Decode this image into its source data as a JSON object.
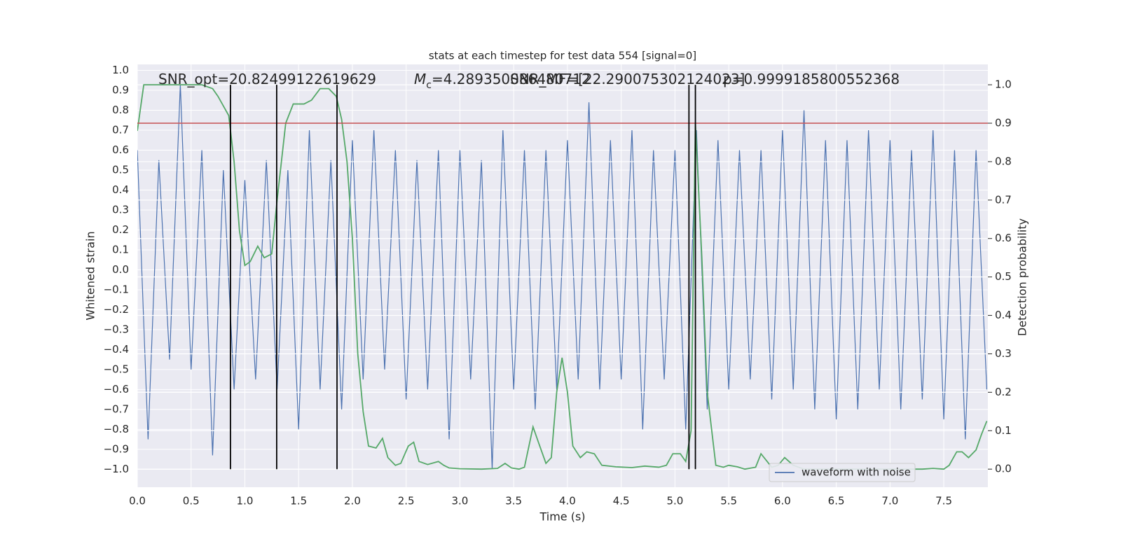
{
  "chart_data": {
    "type": "line",
    "title": "stats at each timestep for test data 554 [signal=0]",
    "x_label": "Time (s)",
    "y_label": "Whitened strain",
    "y2_label": "Detection probability",
    "grid": true,
    "legend_position": "lower right",
    "xlim": [
      0,
      7.91
    ],
    "ylim": [
      -1.09,
      1.03
    ],
    "y2lim": [
      -0.047,
      1.053
    ],
    "xticks": [
      {
        "value": 0,
        "label": "0.0"
      },
      {
        "value": 0.5,
        "label": "0.5"
      },
      {
        "value": 1,
        "label": "1.0"
      },
      {
        "value": 1.5,
        "label": "1.5"
      },
      {
        "value": 2,
        "label": "2.0"
      },
      {
        "value": 2.5,
        "label": "2.5"
      },
      {
        "value": 3,
        "label": "3.0"
      },
      {
        "value": 3.5,
        "label": "3.5"
      },
      {
        "value": 4,
        "label": "4.0"
      },
      {
        "value": 4.5,
        "label": "4.5"
      },
      {
        "value": 5,
        "label": "5.0"
      },
      {
        "value": 5.5,
        "label": "5.5"
      },
      {
        "value": 6,
        "label": "6.0"
      },
      {
        "value": 6.5,
        "label": "6.5"
      },
      {
        "value": 7,
        "label": "7.0"
      },
      {
        "value": 7.5,
        "label": "7.5"
      }
    ],
    "yticks": [
      {
        "value": -1,
        "label": "−1.0"
      },
      {
        "value": -0.9,
        "label": "−0.9"
      },
      {
        "value": -0.8,
        "label": "−0.8"
      },
      {
        "value": -0.7,
        "label": "−0.7"
      },
      {
        "value": -0.6,
        "label": "−0.6"
      },
      {
        "value": -0.5,
        "label": "−0.5"
      },
      {
        "value": -0.4,
        "label": "−0.4"
      },
      {
        "value": -0.3,
        "label": "−0.3"
      },
      {
        "value": -0.2,
        "label": "−0.2"
      },
      {
        "value": -0.1,
        "label": "−0.1"
      },
      {
        "value": 0,
        "label": "0.0"
      },
      {
        "value": 0.1,
        "label": "0.1"
      },
      {
        "value": 0.2,
        "label": "0.2"
      },
      {
        "value": 0.3,
        "label": "0.3"
      },
      {
        "value": 0.4,
        "label": "0.4"
      },
      {
        "value": 0.5,
        "label": "0.5"
      },
      {
        "value": 0.6,
        "label": "0.6"
      },
      {
        "value": 0.7,
        "label": "0.7"
      },
      {
        "value": 0.8,
        "label": "0.8"
      },
      {
        "value": 0.9,
        "label": "0.9"
      },
      {
        "value": 1,
        "label": "1.0"
      }
    ],
    "y2ticks": [
      {
        "value": 0,
        "label": "0.0"
      },
      {
        "value": 0.1,
        "label": "0.1"
      },
      {
        "value": 0.2,
        "label": "0.2"
      },
      {
        "value": 0.3,
        "label": "0.3"
      },
      {
        "value": 0.4,
        "label": "0.4"
      },
      {
        "value": 0.5,
        "label": "0.5"
      },
      {
        "value": 0.6,
        "label": "0.6"
      },
      {
        "value": 0.7,
        "label": "0.7"
      },
      {
        "value": 0.8,
        "label": "0.8"
      },
      {
        "value": 0.9,
        "label": "0.9"
      },
      {
        "value": 1,
        "label": "1.0"
      }
    ],
    "series": [
      {
        "name": "waveform with noise",
        "color": "#4c72b0",
        "x": [
          0.0,
          0.1,
          0.2,
          0.3,
          0.4,
          0.5,
          0.6,
          0.7,
          0.8,
          0.9,
          1.0,
          1.1,
          1.2,
          1.3,
          1.4,
          1.5,
          1.6,
          1.7,
          1.8,
          1.9,
          2.0,
          2.1,
          2.2,
          2.3,
          2.4,
          2.5,
          2.6,
          2.7,
          2.8,
          2.9,
          3.0,
          3.1,
          3.2,
          3.3,
          3.4,
          3.5,
          3.6,
          3.7,
          3.8,
          3.9,
          4.0,
          4.1,
          4.2,
          4.3,
          4.4,
          4.5,
          4.6,
          4.7,
          4.8,
          4.9,
          5.0,
          5.1,
          5.2,
          5.3,
          5.4,
          5.5,
          5.6,
          5.7,
          5.8,
          5.9,
          6.0,
          6.1,
          6.2,
          6.3,
          6.4,
          6.5,
          6.6,
          6.7,
          6.8,
          6.9,
          7.0,
          7.1,
          7.2,
          7.3,
          7.4,
          7.5,
          7.6,
          7.7,
          7.8,
          7.9
        ],
        "values": [
          0.6,
          -0.85,
          0.55,
          -0.45,
          0.93,
          -0.5,
          0.6,
          -0.93,
          0.5,
          -0.6,
          0.45,
          -0.55,
          0.55,
          -0.6,
          0.5,
          -0.8,
          0.7,
          -0.6,
          0.55,
          -0.7,
          0.65,
          -0.55,
          0.7,
          -0.5,
          0.6,
          -0.65,
          0.55,
          -0.6,
          0.6,
          -0.85,
          0.6,
          -0.55,
          0.55,
          -1.0,
          0.7,
          -0.6,
          0.6,
          -0.7,
          0.6,
          -0.6,
          0.65,
          -0.55,
          0.84,
          -0.6,
          0.65,
          -0.55,
          0.7,
          -0.8,
          0.6,
          -0.55,
          0.6,
          -0.8,
          0.7,
          -0.7,
          0.65,
          -0.6,
          0.6,
          -0.55,
          0.6,
          -0.65,
          0.7,
          -0.6,
          0.8,
          -0.7,
          0.65,
          -0.75,
          0.65,
          -0.7,
          0.7,
          -0.6,
          0.65,
          -0.7,
          0.6,
          -0.65,
          0.7,
          -0.75,
          0.6,
          -0.85,
          0.6,
          -0.6
        ]
      },
      {
        "color": "#55a868",
        "axis": "y2",
        "x": [
          0.0,
          0.06,
          0.15,
          0.6,
          0.7,
          0.75,
          0.85,
          0.9,
          0.95,
          1.0,
          1.05,
          1.12,
          1.18,
          1.25,
          1.3,
          1.38,
          1.45,
          1.55,
          1.62,
          1.7,
          1.78,
          1.85,
          1.9,
          1.95,
          2.0,
          2.05,
          2.1,
          2.15,
          2.22,
          2.28,
          2.33,
          2.4,
          2.45,
          2.52,
          2.57,
          2.62,
          2.7,
          2.8,
          2.85,
          2.9,
          3.0,
          3.2,
          3.35,
          3.42,
          3.48,
          3.55,
          3.6,
          3.68,
          3.73,
          3.8,
          3.85,
          3.9,
          3.95,
          4.0,
          4.05,
          4.12,
          4.18,
          4.25,
          4.32,
          4.45,
          4.6,
          4.72,
          4.85,
          4.92,
          4.98,
          5.05,
          5.1,
          5.15,
          5.19,
          5.25,
          5.3,
          5.38,
          5.45,
          5.5,
          5.58,
          5.65,
          5.75,
          5.8,
          5.9,
          5.96,
          6.02,
          6.1,
          6.2,
          6.5,
          6.9,
          7.3,
          7.4,
          7.5,
          7.55,
          7.62,
          7.67,
          7.73,
          7.8,
          7.85,
          7.9
        ],
        "values": [
          0.88,
          1.0,
          1.0,
          1.0,
          0.99,
          0.97,
          0.92,
          0.8,
          0.62,
          0.53,
          0.54,
          0.58,
          0.55,
          0.56,
          0.7,
          0.9,
          0.95,
          0.95,
          0.96,
          0.99,
          0.99,
          0.97,
          0.91,
          0.8,
          0.6,
          0.3,
          0.15,
          0.06,
          0.055,
          0.08,
          0.03,
          0.01,
          0.015,
          0.06,
          0.07,
          0.02,
          0.012,
          0.02,
          0.01,
          0.003,
          0.001,
          0.0,
          0.002,
          0.015,
          0.003,
          0.0,
          0.005,
          0.11,
          0.07,
          0.015,
          0.03,
          0.2,
          0.29,
          0.2,
          0.06,
          0.03,
          0.045,
          0.04,
          0.01,
          0.006,
          0.004,
          0.008,
          0.005,
          0.01,
          0.04,
          0.04,
          0.02,
          0.1,
          0.9,
          0.55,
          0.2,
          0.01,
          0.005,
          0.01,
          0.006,
          0.0,
          0.005,
          0.04,
          0.005,
          0.01,
          0.03,
          0.01,
          0.0,
          0.0,
          0.0,
          0.0,
          0.002,
          0.0,
          0.01,
          0.045,
          0.045,
          0.03,
          0.05,
          0.09,
          0.125
        ]
      }
    ],
    "hline": {
      "value": 0.9,
      "axis": "y2",
      "color": "#c44e52"
    },
    "vlines": {
      "x": [
        0.866,
        1.296,
        1.857,
        5.13,
        5.19
      ],
      "ymin": 0,
      "ymax": 1,
      "axis": "y2",
      "color": "#000000"
    },
    "annotations": [
      {
        "parts": [
          {
            "text": "SNR_opt=20.82499122619629"
          }
        ]
      },
      {
        "parts": [
          {
            "text": "M",
            "style": "italic"
          },
          {
            "text": "c",
            "style": "sub"
          },
          {
            "text": "=4.289350086480712"
          }
        ]
      },
      {
        "parts": [
          {
            "text": "SNR_MF=[22.290075302124023]"
          }
        ]
      },
      {
        "parts": [
          {
            "text": "p=0.9999185800552368"
          }
        ]
      }
    ]
  }
}
